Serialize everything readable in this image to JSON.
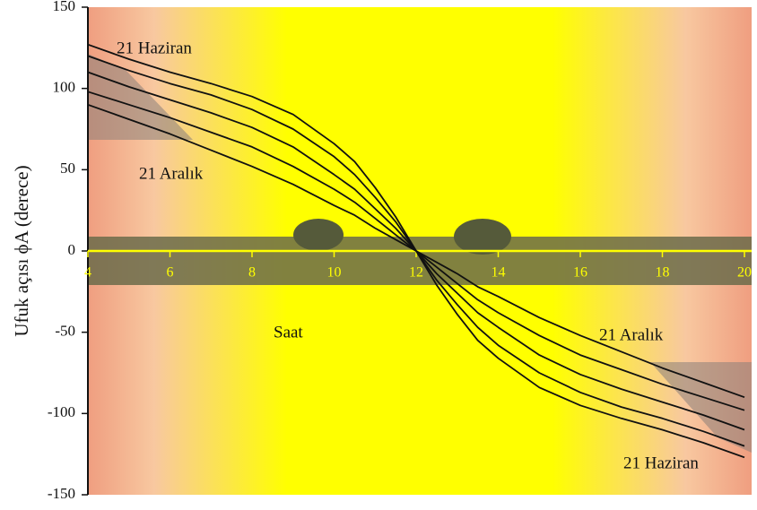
{
  "chart_data": {
    "type": "line",
    "ylabel": "Ufuk açısı ϕA (derece)",
    "annotations": [
      "21 Haziran",
      "21 Aralık",
      "Saat",
      "21 Aralık",
      "21 Haziran"
    ],
    "x": [
      4,
      5,
      6,
      7,
      8,
      9,
      10,
      10.5,
      11,
      11.5,
      12,
      12.5,
      13,
      13.5,
      14,
      15,
      16,
      17,
      18,
      19,
      20
    ],
    "series": [
      {
        "color": "#111111",
        "values": [
          127,
          118,
          110,
          103,
          95,
          84,
          66,
          55,
          39,
          21,
          0,
          -21,
          -39,
          -55,
          -66,
          -84,
          -95,
          -103,
          -110,
          -118,
          -127
        ]
      },
      {
        "color": "#111111",
        "values": [
          120,
          111,
          103,
          96,
          87,
          75,
          58,
          47,
          33,
          18,
          0,
          -18,
          -33,
          -47,
          -58,
          -75,
          -87,
          -96,
          -103,
          -111,
          -120
        ]
      },
      {
        "color": "#111111",
        "values": [
          110,
          101,
          93,
          85,
          76,
          64,
          47,
          38,
          26,
          14,
          0,
          -14,
          -26,
          -38,
          -47,
          -64,
          -76,
          -85,
          -93,
          -101,
          -110
        ]
      },
      {
        "color": "#111111",
        "values": [
          98,
          90,
          82,
          73,
          64,
          52,
          38,
          30,
          20,
          10,
          0,
          -10,
          -20,
          -30,
          -38,
          -52,
          -64,
          -73,
          -82,
          -90,
          -98
        ]
      },
      {
        "color": "#111111",
        "values": [
          90,
          81,
          72,
          62,
          52,
          41,
          28,
          22,
          14,
          7,
          0,
          -7,
          -14,
          -22,
          -28,
          -41,
          -52,
          -62,
          -72,
          -81,
          -90
        ]
      }
    ],
    "xlim": [
      4,
      20
    ],
    "xticks": [
      4,
      6,
      8,
      10,
      12,
      14,
      16,
      18,
      20
    ],
    "ylim": [
      -150,
      150
    ],
    "yticks": [
      -150,
      -100,
      -50,
      0,
      50,
      100,
      150
    ]
  }
}
